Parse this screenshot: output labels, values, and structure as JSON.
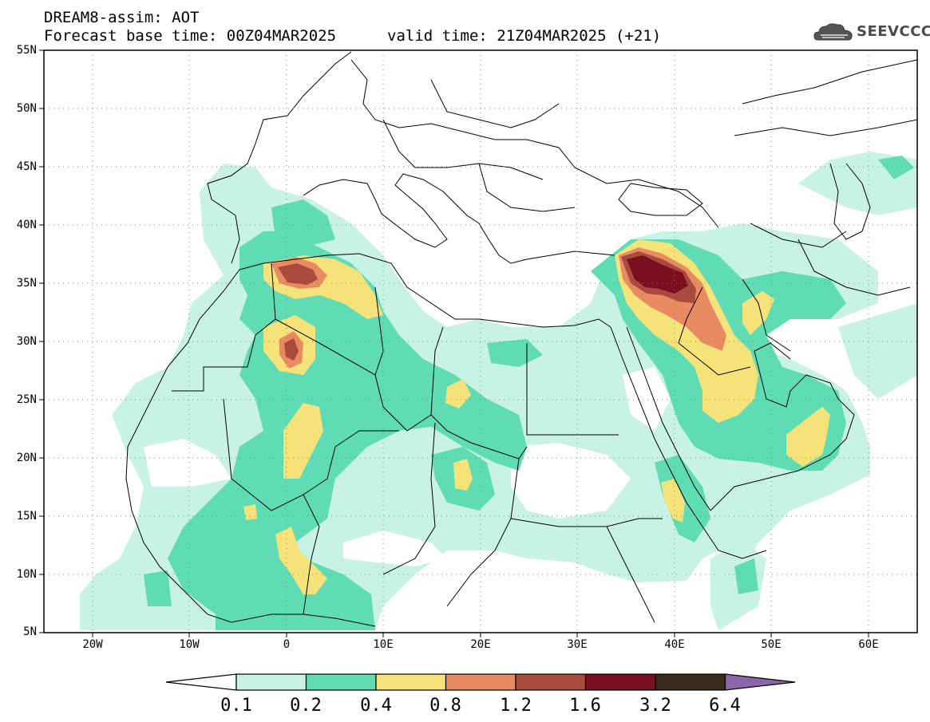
{
  "header": {
    "line1": "DREAM8-assim: AOT",
    "line2": "Forecast base time: 00Z04MAR2025",
    "line3": "valid time: 21Z04MAR2025 (+21)"
  },
  "logo": {
    "text": "SEEVCCC",
    "icon": "cloud-icon"
  },
  "map": {
    "lat_labels": [
      "55N",
      "50N",
      "45N",
      "40N",
      "35N",
      "30N",
      "25N",
      "20N",
      "15N",
      "10N",
      "5N"
    ],
    "lon_labels": [
      "20W",
      "10W",
      "0",
      "10E",
      "20E",
      "30E",
      "40E",
      "50E",
      "60E"
    ],
    "lat_range": [
      5,
      55
    ],
    "lon_range": [
      -25,
      65
    ],
    "grid": "dotted"
  },
  "colorbar": {
    "labels": [
      "0.1",
      "0.2",
      "0.4",
      "0.8",
      "1.2",
      "1.6",
      "3.2",
      "6.4"
    ],
    "colors": [
      "#ffffff",
      "#c8f2e6",
      "#5fdcb4",
      "#f5e37a",
      "#e88a62",
      "#a84a3e",
      "#7a0f22",
      "#3a2a1a",
      "#8a66aa"
    ]
  },
  "colors": {
    "lvl1": "#c8f2e6",
    "lvl2": "#5fdcb4",
    "lvl3": "#f5e37a",
    "lvl4": "#e88a62",
    "lvl5": "#a84a3e",
    "lvl6": "#7a0f22"
  }
}
